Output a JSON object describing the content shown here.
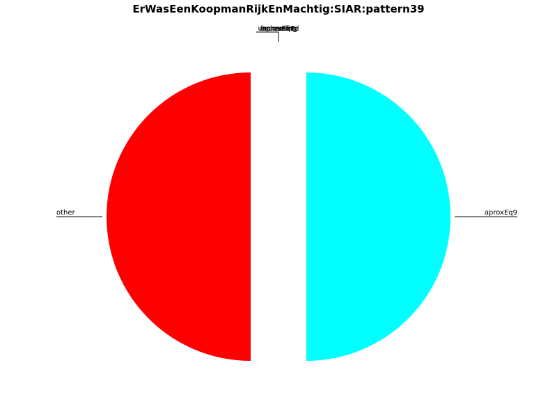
{
  "chart_data": {
    "type": "pie",
    "title": "ErWasEenKoopmanRijkEnMachtig:SIAR:pattern39",
    "slices": [
      {
        "label": "other",
        "value": 50,
        "color": "#ff0000",
        "exploded": true
      },
      {
        "label": "aproxEq9",
        "value": 50,
        "color": "#00ffff",
        "exploded": true
      },
      {
        "label": "aproxEq8",
        "value": 0,
        "color": "#00ffff"
      },
      {
        "label": "aproxEq1",
        "value": 0,
        "color": "#00ffff"
      },
      {
        "label": "unclassified",
        "value": 0,
        "color": "#ff0000"
      },
      {
        "label": "increasing",
        "value": 0,
        "color": "#ff0000"
      },
      {
        "label": "decreasing",
        "value": 0,
        "color": "#ff0000"
      }
    ],
    "legend": "none",
    "grid": false
  }
}
